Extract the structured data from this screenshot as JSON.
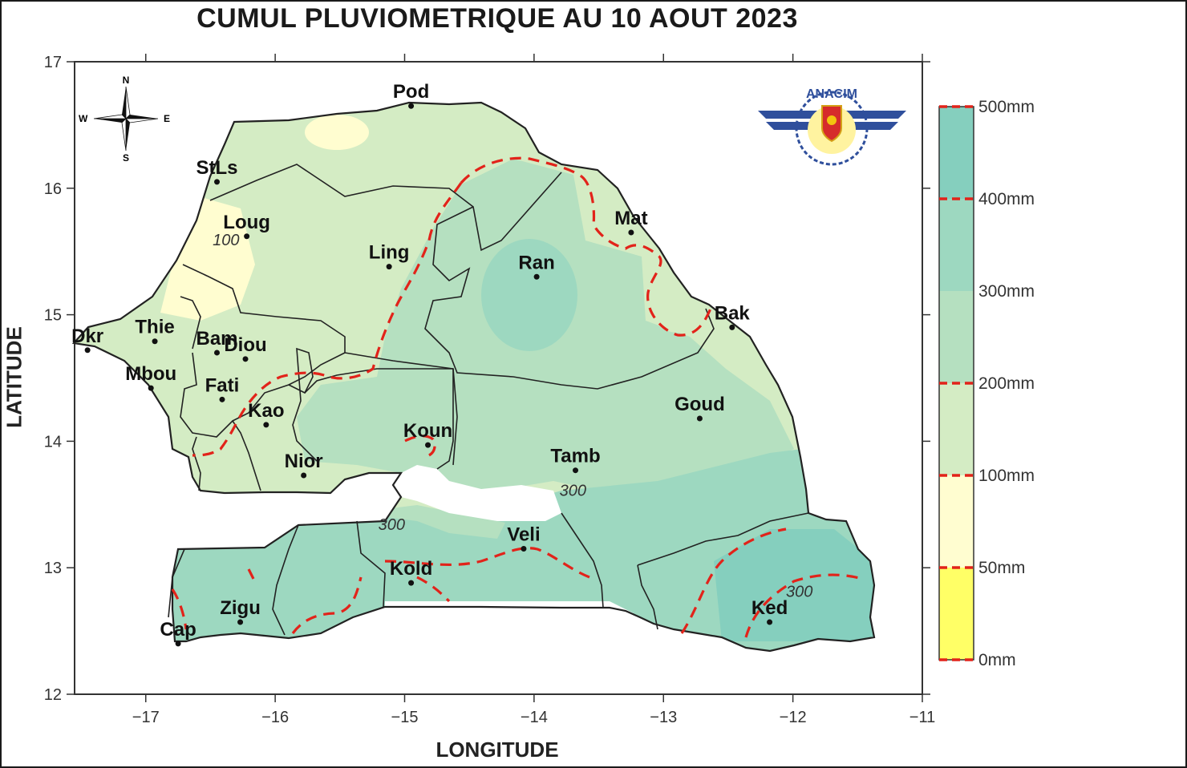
{
  "title": "CUMUL PLUVIOMETRIQUE AU 10 AOUT 2023",
  "axes": {
    "xlabel": "LONGITUDE",
    "ylabel": "LATITUDE",
    "x_ticks": [
      "−17",
      "−16",
      "−15",
      "−14",
      "−13",
      "−12",
      "−11"
    ],
    "y_ticks": [
      "17",
      "16",
      "15",
      "14",
      "13",
      "12"
    ],
    "x_range": [
      -17.55,
      -11.0
    ],
    "y_range": [
      12.0,
      17.0
    ]
  },
  "compass": {
    "n": "N",
    "s": "S",
    "e": "E",
    "w": "W"
  },
  "logo": {
    "name": "ANACIM",
    "text": "ANACIM"
  },
  "cities": [
    {
      "name": "Pod",
      "lon": -14.95,
      "lat": 16.65
    },
    {
      "name": "StLs",
      "lon": -16.45,
      "lat": 16.05
    },
    {
      "name": "Loug",
      "lon": -16.22,
      "lat": 15.62
    },
    {
      "name": "Ling",
      "lon": -15.12,
      "lat": 15.38
    },
    {
      "name": "Ran",
      "lon": -13.98,
      "lat": 15.3
    },
    {
      "name": "Mat",
      "lon": -13.25,
      "lat": 15.65
    },
    {
      "name": "Bak",
      "lon": -12.47,
      "lat": 14.9
    },
    {
      "name": "Dkr",
      "lon": -17.45,
      "lat": 14.72
    },
    {
      "name": "Thie",
      "lon": -16.93,
      "lat": 14.79
    },
    {
      "name": "Bam",
      "lon": -16.45,
      "lat": 14.7
    },
    {
      "name": "Diou",
      "lon": -16.23,
      "lat": 14.65
    },
    {
      "name": "Mbou",
      "lon": -16.96,
      "lat": 14.42
    },
    {
      "name": "Fati",
      "lon": -16.41,
      "lat": 14.33
    },
    {
      "name": "Kao",
      "lon": -16.07,
      "lat": 14.13
    },
    {
      "name": "Koun",
      "lon": -14.82,
      "lat": 13.97
    },
    {
      "name": "Goud",
      "lon": -12.72,
      "lat": 14.18
    },
    {
      "name": "Nior",
      "lon": -15.78,
      "lat": 13.73
    },
    {
      "name": "Tamb",
      "lon": -13.68,
      "lat": 13.77
    },
    {
      "name": "Veli",
      "lon": -14.08,
      "lat": 13.15
    },
    {
      "name": "Kold",
      "lon": -14.95,
      "lat": 12.88
    },
    {
      "name": "Zigu",
      "lon": -16.27,
      "lat": 12.57
    },
    {
      "name": "Cap",
      "lon": -16.75,
      "lat": 12.4
    },
    {
      "name": "Ked",
      "lon": -12.18,
      "lat": 12.57
    }
  ],
  "isolines": [
    {
      "label": "100",
      "lon": -16.38,
      "lat": 15.55
    },
    {
      "label": "300",
      "lon": -13.7,
      "lat": 13.57
    },
    {
      "label": "300",
      "lon": -15.1,
      "lat": 13.3
    },
    {
      "label": "300",
      "lon": -11.95,
      "lat": 12.77
    }
  ],
  "legend": {
    "colors": [
      "#ffff66",
      "#fffdd0",
      "#d4ecc4",
      "#b5e0c0",
      "#9dd8c0",
      "#85cfbe"
    ],
    "labels": [
      "0mm",
      "50mm",
      "100mm",
      "200mm",
      "300mm",
      "400mm",
      "500mm"
    ]
  },
  "rainfall_colors": {
    "lt_100mm": "#fffdd0",
    "r100_200mm": "#d4ecc4",
    "r200_300mm": "#b5e0c0",
    "r300_400mm": "#9dd8c0",
    "r400_500mm": "#85cfbe",
    "contour_dashed": "#e2231a"
  }
}
